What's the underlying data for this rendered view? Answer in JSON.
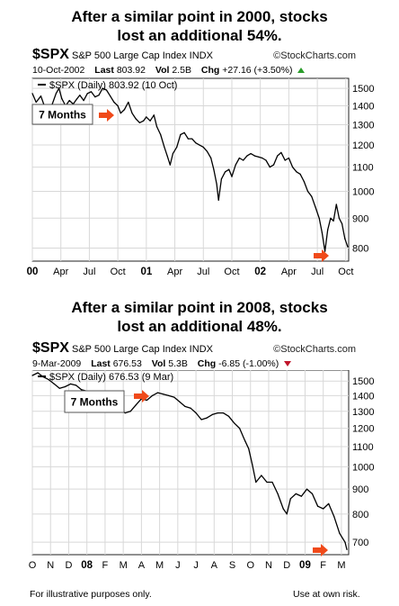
{
  "headline_top": {
    "line1": "After a similar point in 2000, stocks",
    "line2": "lost an additional 54%."
  },
  "headline_bottom": {
    "line1": "After a similar point in 2008, stocks",
    "line2": "lost an additional 48%."
  },
  "panel_top": {
    "symbol": "$SPX",
    "name": "S&P 500 Large Cap Index INDX",
    "brand": "©StockCharts.com",
    "date": "10-Oct-2002",
    "last_label": "Last",
    "last_value": "803.92",
    "vol_label": "Vol",
    "vol_value": "2.5B",
    "chg_label": "Chg",
    "chg_value": "+27.16 (+3.50%)",
    "chg_direction": "up",
    "legend": "$SPX (Daily) 803.92 (10 Oct)",
    "callout": "7 Months",
    "arrow_color": "#f04a1a"
  },
  "panel_bottom": {
    "symbol": "$SPX",
    "name": "S&P 500 Large Cap Index INDX",
    "brand": "©StockCharts.com",
    "date": "9-Mar-2009",
    "last_label": "Last",
    "last_value": "676.53",
    "vol_label": "Vol",
    "vol_value": "5.3B",
    "chg_label": "Chg",
    "chg_value": "-6.85 (-1.00%)",
    "chg_direction": "down",
    "legend": "$SPX (Daily) 676.53 (9 Mar)",
    "callout": "7 Months",
    "arrow_color": "#f04a1a"
  },
  "footer": {
    "left": "For illustrative purposes only.",
    "right": "Use at own risk."
  },
  "chart_data": [
    {
      "type": "line",
      "title": "",
      "xlabel": "",
      "ylabel": "",
      "log_scale": true,
      "grid": true,
      "legend_position": "top-left",
      "xlim": [
        0,
        33.3
      ],
      "ylim": [
        760,
        1560
      ],
      "yticks": [
        800,
        900,
        1000,
        1100,
        1200,
        1300,
        1400,
        1500
      ],
      "xticks": [
        {
          "x": 0,
          "label": "00",
          "bold": true
        },
        {
          "x": 3,
          "label": "Apr"
        },
        {
          "x": 6,
          "label": "Jul"
        },
        {
          "x": 9,
          "label": "Oct"
        },
        {
          "x": 12,
          "label": "01",
          "bold": true
        },
        {
          "x": 15,
          "label": "Apr"
        },
        {
          "x": 18,
          "label": "Jul"
        },
        {
          "x": 21,
          "label": "Oct"
        },
        {
          "x": 24,
          "label": "02",
          "bold": true
        },
        {
          "x": 27,
          "label": "Apr"
        },
        {
          "x": 30,
          "label": "Jul"
        },
        {
          "x": 33,
          "label": "Oct"
        }
      ],
      "series": [
        {
          "color": "#000000",
          "points": [
            [
              0,
              1470
            ],
            [
              0.4,
              1420
            ],
            [
              0.9,
              1455
            ],
            [
              1.3,
              1395
            ],
            [
              1.7,
              1360
            ],
            [
              2.1,
              1410
            ],
            [
              2.5,
              1470
            ],
            [
              2.8,
              1500
            ],
            [
              3.1,
              1440
            ],
            [
              3.5,
              1400
            ],
            [
              3.9,
              1430
            ],
            [
              4.3,
              1410
            ],
            [
              4.7,
              1440
            ],
            [
              5.0,
              1460
            ],
            [
              5.4,
              1430
            ],
            [
              5.8,
              1470
            ],
            [
              6.2,
              1480
            ],
            [
              6.6,
              1450
            ],
            [
              7.0,
              1460
            ],
            [
              7.4,
              1500
            ],
            [
              7.8,
              1490
            ],
            [
              8.2,
              1455
            ],
            [
              8.6,
              1420
            ],
            [
              9.0,
              1400
            ],
            [
              9.3,
              1360
            ],
            [
              9.7,
              1380
            ],
            [
              10.1,
              1420
            ],
            [
              10.5,
              1360
            ],
            [
              10.9,
              1330
            ],
            [
              11.3,
              1310
            ],
            [
              11.7,
              1320
            ],
            [
              12.0,
              1340
            ],
            [
              12.4,
              1320
            ],
            [
              12.8,
              1350
            ],
            [
              13.1,
              1290
            ],
            [
              13.5,
              1250
            ],
            [
              13.9,
              1190
            ],
            [
              14.2,
              1150
            ],
            [
              14.5,
              1110
            ],
            [
              14.8,
              1160
            ],
            [
              15.2,
              1190
            ],
            [
              15.6,
              1250
            ],
            [
              16.0,
              1260
            ],
            [
              16.4,
              1230
            ],
            [
              16.8,
              1230
            ],
            [
              17.2,
              1210
            ],
            [
              17.6,
              1200
            ],
            [
              18.0,
              1190
            ],
            [
              18.4,
              1170
            ],
            [
              18.8,
              1140
            ],
            [
              19.1,
              1090
            ],
            [
              19.4,
              1030
            ],
            [
              19.6,
              966
            ],
            [
              19.9,
              1050
            ],
            [
              20.3,
              1080
            ],
            [
              20.7,
              1090
            ],
            [
              21.0,
              1060
            ],
            [
              21.4,
              1110
            ],
            [
              21.8,
              1140
            ],
            [
              22.2,
              1130
            ],
            [
              22.6,
              1150
            ],
            [
              23.0,
              1160
            ],
            [
              23.4,
              1150
            ],
            [
              23.8,
              1145
            ],
            [
              24.2,
              1140
            ],
            [
              24.6,
              1130
            ],
            [
              25.0,
              1100
            ],
            [
              25.4,
              1110
            ],
            [
              25.8,
              1150
            ],
            [
              26.2,
              1165
            ],
            [
              26.6,
              1130
            ],
            [
              27.0,
              1140
            ],
            [
              27.4,
              1100
            ],
            [
              27.8,
              1080
            ],
            [
              28.2,
              1070
            ],
            [
              28.6,
              1040
            ],
            [
              29.0,
              1000
            ],
            [
              29.4,
              980
            ],
            [
              29.8,
              940
            ],
            [
              30.2,
              900
            ],
            [
              30.5,
              850
            ],
            [
              30.8,
              790
            ],
            [
              31.1,
              860
            ],
            [
              31.4,
              900
            ],
            [
              31.7,
              890
            ],
            [
              32.0,
              950
            ],
            [
              32.3,
              900
            ],
            [
              32.6,
              880
            ],
            [
              32.9,
              830
            ],
            [
              33.2,
              804
            ]
          ]
        }
      ]
    },
    {
      "type": "line",
      "title": "",
      "xlabel": "",
      "ylabel": "",
      "log_scale": true,
      "grid": true,
      "legend_position": "top-left",
      "xlim": [
        0,
        17.4
      ],
      "ylim": [
        660,
        1580
      ],
      "yticks": [
        700,
        800,
        900,
        1000,
        1100,
        1200,
        1300,
        1400,
        1500
      ],
      "xticks": [
        {
          "x": 0,
          "label": "O"
        },
        {
          "x": 1,
          "label": "N"
        },
        {
          "x": 2,
          "label": "D"
        },
        {
          "x": 3,
          "label": "08",
          "bold": true
        },
        {
          "x": 4,
          "label": "F"
        },
        {
          "x": 5,
          "label": "M"
        },
        {
          "x": 6,
          "label": "A"
        },
        {
          "x": 7,
          "label": "M"
        },
        {
          "x": 8,
          "label": "J"
        },
        {
          "x": 9,
          "label": "J"
        },
        {
          "x": 10,
          "label": "A"
        },
        {
          "x": 11,
          "label": "S"
        },
        {
          "x": 12,
          "label": "O"
        },
        {
          "x": 13,
          "label": "N"
        },
        {
          "x": 14,
          "label": "D"
        },
        {
          "x": 15,
          "label": "09",
          "bold": true
        },
        {
          "x": 16,
          "label": "F"
        },
        {
          "x": 17,
          "label": "M"
        }
      ],
      "series": [
        {
          "color": "#000000",
          "points": [
            [
              0.0,
              1540
            ],
            [
              0.3,
              1560
            ],
            [
              0.6,
              1530
            ],
            [
              0.9,
              1510
            ],
            [
              1.2,
              1480
            ],
            [
              1.5,
              1450
            ],
            [
              1.8,
              1460
            ],
            [
              2.1,
              1480
            ],
            [
              2.4,
              1470
            ],
            [
              2.7,
              1440
            ],
            [
              3.0,
              1430
            ],
            [
              3.3,
              1410
            ],
            [
              3.6,
              1360
            ],
            [
              3.9,
              1340
            ],
            [
              4.2,
              1360
            ],
            [
              4.5,
              1330
            ],
            [
              4.8,
              1310
            ],
            [
              5.1,
              1290
            ],
            [
              5.4,
              1300
            ],
            [
              5.7,
              1340
            ],
            [
              6.0,
              1380
            ],
            [
              6.3,
              1370
            ],
            [
              6.6,
              1400
            ],
            [
              6.9,
              1420
            ],
            [
              7.2,
              1410
            ],
            [
              7.5,
              1400
            ],
            [
              7.8,
              1390
            ],
            [
              8.1,
              1360
            ],
            [
              8.4,
              1330
            ],
            [
              8.7,
              1320
            ],
            [
              9.0,
              1290
            ],
            [
              9.3,
              1250
            ],
            [
              9.6,
              1260
            ],
            [
              9.9,
              1280
            ],
            [
              10.2,
              1290
            ],
            [
              10.5,
              1290
            ],
            [
              10.8,
              1270
            ],
            [
              11.1,
              1230
            ],
            [
              11.4,
              1200
            ],
            [
              11.7,
              1130
            ],
            [
              11.9,
              1090
            ],
            [
              12.1,
              1010
            ],
            [
              12.3,
              930
            ],
            [
              12.6,
              960
            ],
            [
              12.9,
              930
            ],
            [
              13.2,
              930
            ],
            [
              13.5,
              880
            ],
            [
              13.8,
              820
            ],
            [
              14.0,
              800
            ],
            [
              14.2,
              860
            ],
            [
              14.5,
              880
            ],
            [
              14.8,
              870
            ],
            [
              15.1,
              900
            ],
            [
              15.4,
              880
            ],
            [
              15.7,
              830
            ],
            [
              16.0,
              820
            ],
            [
              16.3,
              840
            ],
            [
              16.6,
              790
            ],
            [
              16.9,
              730
            ],
            [
              17.2,
              700
            ],
            [
              17.3,
              676
            ]
          ]
        }
      ]
    }
  ]
}
